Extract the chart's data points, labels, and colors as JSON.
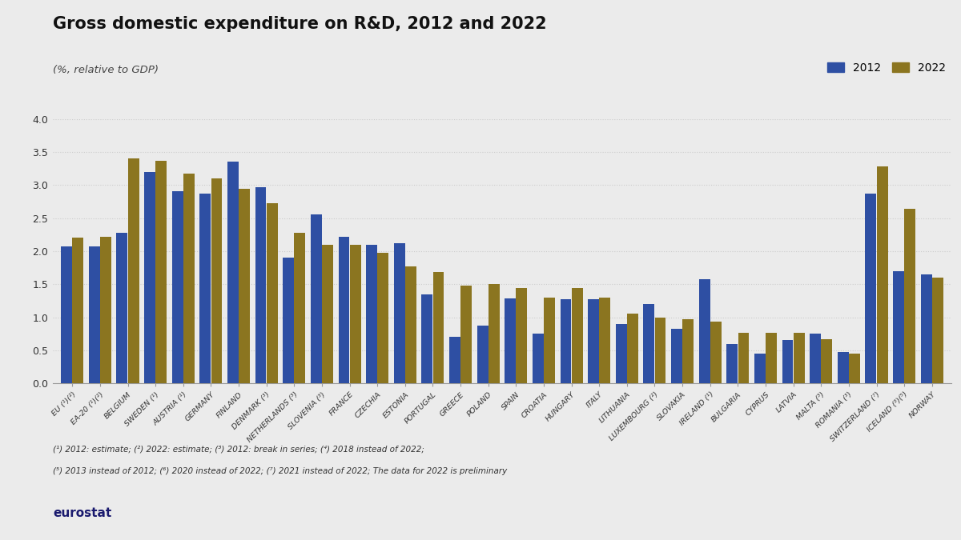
{
  "title": "Gross domestic expenditure on R&D, 2012 and 2022",
  "subtitle": "(%, relative to GDP)",
  "background_color": "#ebebeb",
  "plot_bg_color": "#ebebeb",
  "bar_color_2012": "#2e4fa3",
  "bar_color_2022": "#8b7520",
  "ylim": [
    0,
    4.0
  ],
  "yticks": [
    0.0,
    0.5,
    1.0,
    1.5,
    2.0,
    2.5,
    3.0,
    3.5,
    4.0
  ],
  "footnote_line1": "(¹) 2012: estimate; (²) 2022: estimate; (³) 2012: break in series; (⁴) 2018 instead of 2022;",
  "footnote_line2": "(⁵) 2013 instead of 2012; (⁶) 2020 instead of 2022; (⁷) 2021 instead of 2022; The data for 2022 is preliminary",
  "categories": [
    "EU (¹)(²)",
    "EA-20 (¹)(²)",
    "BELGIUM",
    "SWEDEN (¹)",
    "AUSTRIA (¹)",
    "GERMANY",
    "FINLAND",
    "DENMARK (³)",
    "NETHERLANDS (³)",
    "SLOVENIA (³)",
    "FRANCE",
    "CZECHIA",
    "ESTONIA",
    "PORTUGAL",
    "GREECE",
    "POLAND",
    "SPAIN",
    "CROATIA",
    "HUNGARY",
    "ITALY",
    "LITHUANIA",
    "LUXEMBOURG (²)",
    "SLOVAKIA",
    "IRELAND (¹)",
    "BULGARIA",
    "CYPRUS",
    "LATVIA",
    "MALTA (³)",
    "ROMANIA (³)",
    "SWITZERLAND (⁷)",
    "ICELAND (³)(⁵)",
    "NORWAY"
  ],
  "values_2012": [
    2.07,
    2.07,
    2.28,
    3.2,
    2.9,
    2.87,
    3.35,
    2.97,
    1.9,
    2.55,
    2.22,
    2.1,
    2.12,
    1.35,
    0.7,
    0.87,
    1.29,
    0.75,
    1.27,
    1.27,
    0.9,
    1.2,
    0.82,
    1.57,
    0.6,
    0.45,
    0.66,
    0.75,
    0.48,
    2.87,
    1.7,
    1.65
  ],
  "values_2022": [
    2.2,
    2.22,
    3.4,
    3.37,
    3.17,
    3.1,
    2.94,
    2.73,
    2.28,
    2.09,
    2.09,
    1.97,
    1.77,
    1.68,
    1.48,
    1.5,
    1.44,
    1.3,
    1.44,
    1.3,
    1.05,
    1.0,
    0.97,
    0.94,
    0.77,
    0.77,
    0.76,
    0.67,
    0.45,
    3.28,
    2.64,
    1.6
  ]
}
